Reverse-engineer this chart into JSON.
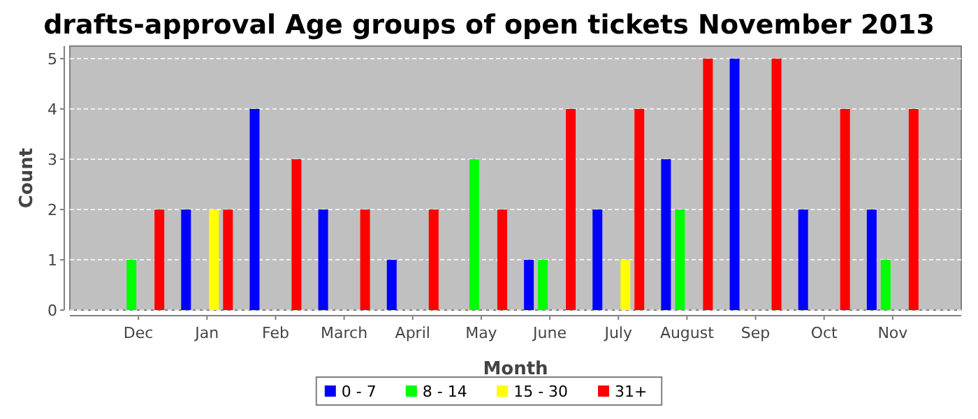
{
  "chart_data": {
    "type": "bar",
    "title": "drafts-approval Age groups of open tickets November 2013",
    "xlabel": "Month",
    "ylabel": "Count",
    "categories": [
      "Dec",
      "Jan",
      "Feb",
      "March",
      "April",
      "May",
      "June",
      "July",
      "August",
      "Sep",
      "Oct",
      "Nov"
    ],
    "series": [
      {
        "name": "0 - 7",
        "color": "#0000ff",
        "values": [
          0,
          2,
          4,
          2,
          1,
          0,
          1,
          2,
          3,
          5,
          2,
          2
        ]
      },
      {
        "name": "8 - 14",
        "color": "#00ff00",
        "values": [
          1,
          0,
          0,
          0,
          0,
          3,
          1,
          0,
          2,
          0,
          0,
          1
        ]
      },
      {
        "name": "15 - 30",
        "color": "#ffff00",
        "values": [
          0,
          2,
          0,
          0,
          0,
          0,
          0,
          1,
          0,
          0,
          0,
          0
        ]
      },
      {
        "name": "31+",
        "color": "#ff0000",
        "values": [
          2,
          2,
          3,
          2,
          2,
          2,
          4,
          4,
          5,
          5,
          4,
          4
        ]
      }
    ],
    "ylim": [
      0,
      5.25
    ],
    "yticks": [
      0,
      1,
      2,
      3,
      4,
      5
    ],
    "grid": "y",
    "legend": "bottom"
  }
}
